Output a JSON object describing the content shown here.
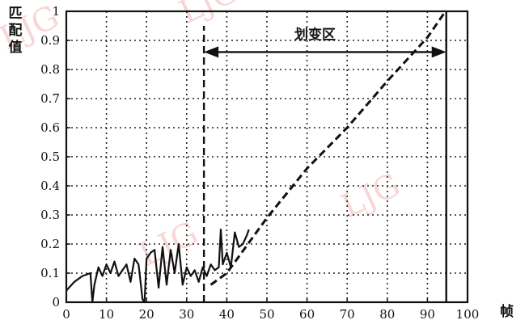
{
  "chart_data": {
    "type": "line",
    "title": "",
    "xlabel": "帧",
    "ylabel": [
      "匹",
      "配",
      "值"
    ],
    "xlim": [
      0,
      100
    ],
    "ylim": [
      0,
      1
    ],
    "grid": true,
    "x_ticks": [
      0,
      10,
      20,
      30,
      40,
      50,
      60,
      70,
      80,
      90,
      100
    ],
    "x_tick_labels": [
      "0",
      "10",
      "20",
      "30",
      "40",
      "50",
      "60",
      "70",
      "80",
      "90",
      "100"
    ],
    "y_ticks": [
      0,
      0.1,
      0.2,
      0.3,
      0.4,
      0.5,
      0.6,
      0.7,
      0.8,
      0.9,
      1
    ],
    "y_tick_labels": [
      "0",
      "0.1",
      "0.2",
      "0.3",
      "0.4",
      "0.5",
      "0.6",
      "0.7",
      "0.8",
      "0.9",
      "1"
    ],
    "series": [
      {
        "style": "solid",
        "x": [
          0,
          2,
          4,
          6,
          6.5,
          7,
          8,
          9,
          10,
          11,
          12,
          13,
          14,
          15,
          16,
          17,
          18,
          19,
          19.5,
          20,
          21,
          22,
          23,
          24,
          25,
          26,
          27,
          28,
          29,
          30,
          31,
          32,
          33,
          34,
          35,
          36,
          37,
          38,
          38.5,
          39,
          40,
          41,
          42,
          43,
          44,
          45,
          45.5
        ],
        "y": [
          0.04,
          0.07,
          0.09,
          0.1,
          0.0,
          0.06,
          0.12,
          0.09,
          0.13,
          0.1,
          0.14,
          0.09,
          0.11,
          0.13,
          0.07,
          0.15,
          0.13,
          0.01,
          0.0,
          0.15,
          0.17,
          0.18,
          0.05,
          0.19,
          0.06,
          0.18,
          0.1,
          0.2,
          0.06,
          0.12,
          0.09,
          0.11,
          0.07,
          0.12,
          0.09,
          0.13,
          0.11,
          0.12,
          0.25,
          0.13,
          0.17,
          0.12,
          0.24,
          0.19,
          0.2,
          0.23,
          0.25
        ]
      },
      {
        "style": "dashed",
        "x": [
          36,
          40,
          50,
          60,
          70,
          80,
          90,
          94.5
        ],
        "y": [
          0.06,
          0.1,
          0.29,
          0.46,
          0.6,
          0.76,
          0.91,
          1.0
        ]
      }
    ],
    "vertical_lines": [
      {
        "x": 34.3,
        "ymax": 0.95,
        "style": "dashed"
      },
      {
        "x": 94.7,
        "ymax": 1.0,
        "style": "solid"
      }
    ],
    "annotations": [
      {
        "text": "划变区",
        "type": "double-arrow",
        "x_start": 34.3,
        "x_end": 94.7,
        "y": 0.86,
        "label_x": 62,
        "label_y": 0.91
      }
    ]
  },
  "watermark": "LJG"
}
